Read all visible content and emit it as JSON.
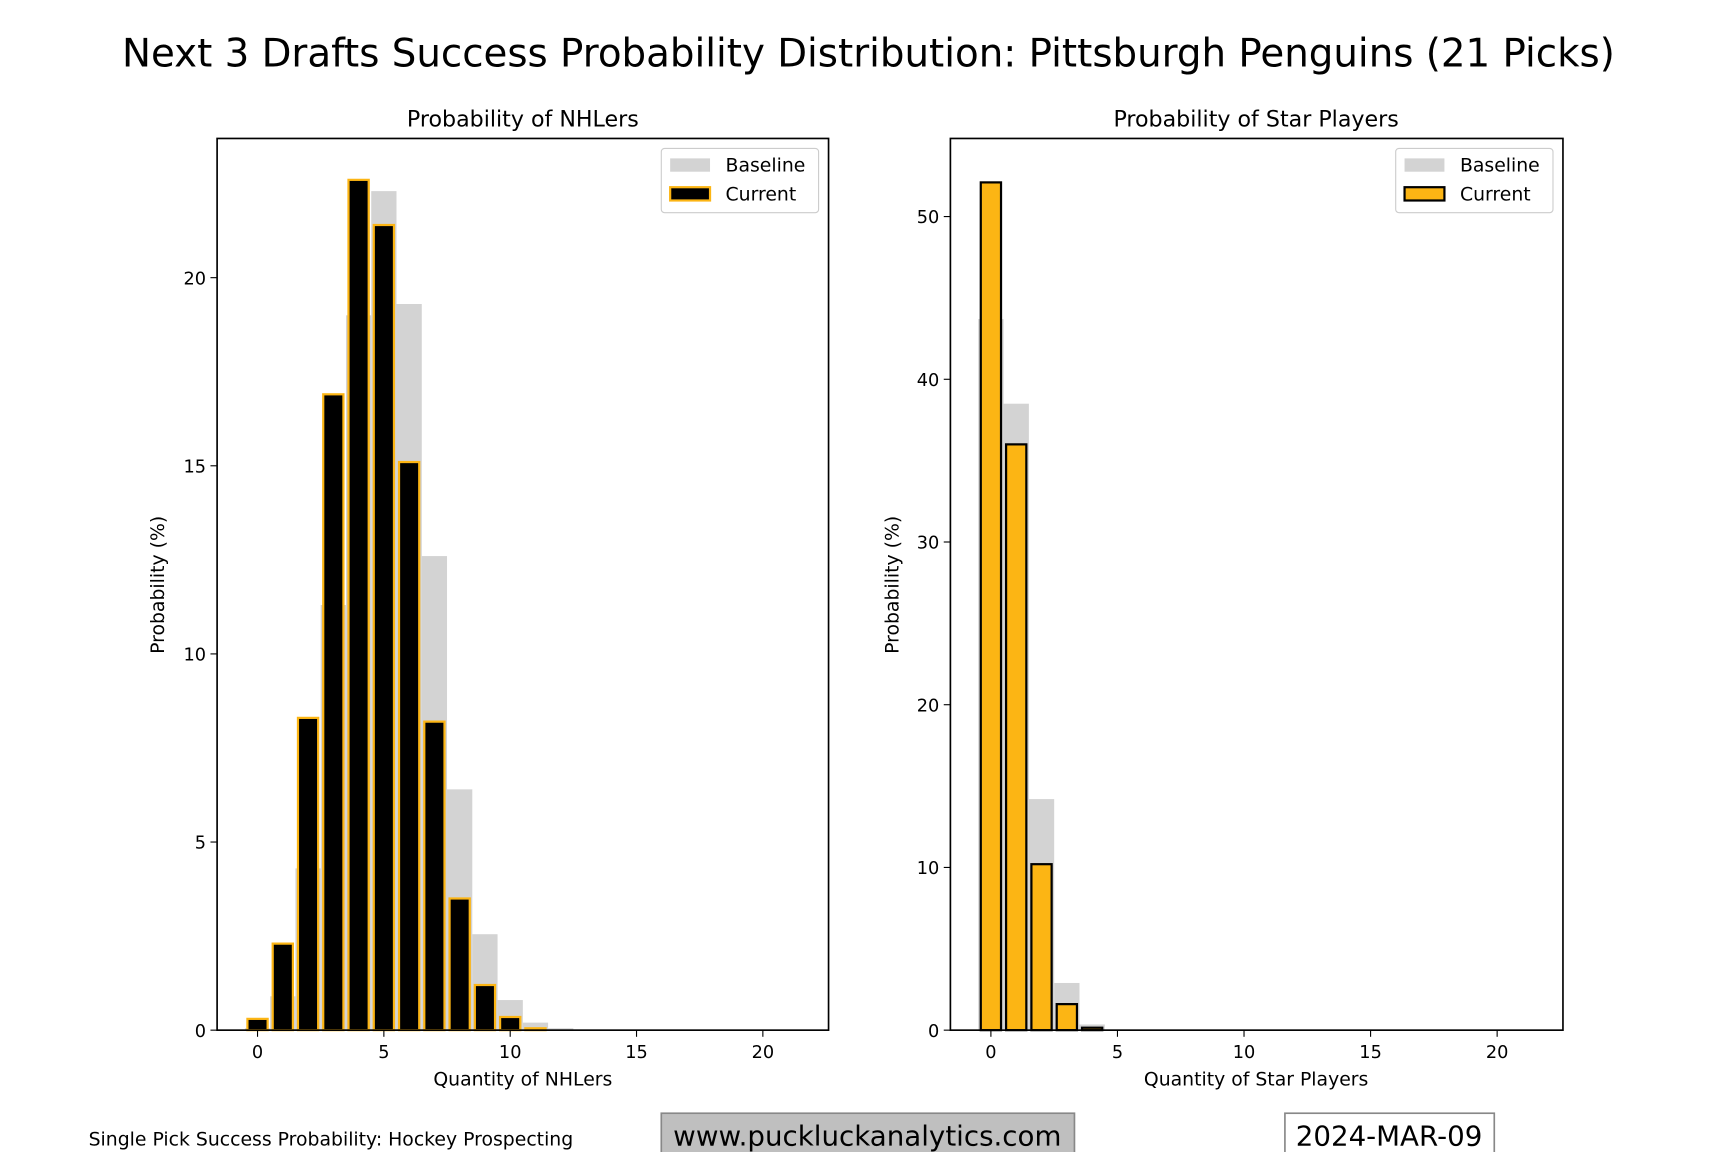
{
  "title": "Next 3 Drafts Success Probability Distribution: Pittsburgh Penguins (21 Picks)",
  "footer": {
    "source": "Single Pick Success Probability: Hockey Prospecting",
    "website": "www.puckluckanalytics.com",
    "date": "2024-MAR-09"
  },
  "colors": {
    "baseline": "#d3d3d3",
    "gold": "#fcb514",
    "black": "#000000"
  },
  "chart_data": [
    {
      "type": "bar",
      "title": "Probability of NHLers",
      "xlabel": "Quantity of NHLers",
      "ylabel": "Probability (%)",
      "xlim": [
        -1.6,
        22.6
      ],
      "ylim": [
        0,
        23.7
      ],
      "xticks": [
        0,
        5,
        10,
        15,
        20
      ],
      "yticks": [
        0,
        5,
        10,
        15,
        20
      ],
      "legend": {
        "position": "top-right",
        "entries": [
          "Baseline",
          "Current"
        ]
      },
      "x": [
        0,
        1,
        2,
        3,
        4,
        5,
        6,
        7,
        8,
        9,
        10,
        11,
        12,
        13,
        14,
        15,
        16,
        17,
        18,
        19,
        20,
        21
      ],
      "series": [
        {
          "name": "Baseline",
          "values": [
            0.05,
            0.9,
            4.3,
            11.3,
            19.0,
            22.3,
            19.3,
            12.6,
            6.4,
            2.55,
            0.8,
            0.2,
            0.05,
            0,
            0,
            0,
            0,
            0,
            0,
            0,
            0,
            0
          ]
        },
        {
          "name": "Current",
          "values": [
            0.3,
            2.3,
            8.3,
            16.9,
            22.6,
            21.4,
            15.1,
            8.2,
            3.5,
            1.2,
            0.35,
            0.05,
            0,
            0,
            0,
            0,
            0,
            0,
            0,
            0,
            0,
            0
          ]
        }
      ]
    },
    {
      "type": "bar",
      "title": "Probability of Star Players",
      "xlabel": "Quantity of Star Players",
      "ylabel": "Probability (%)",
      "xlim": [
        -1.6,
        22.6
      ],
      "ylim": [
        0,
        54.8
      ],
      "xticks": [
        0,
        5,
        10,
        15,
        20
      ],
      "yticks": [
        0,
        10,
        20,
        30,
        40,
        50
      ],
      "legend": {
        "position": "top-right",
        "entries": [
          "Baseline",
          "Current"
        ]
      },
      "x": [
        0,
        1,
        2,
        3,
        4,
        5,
        6,
        7,
        8,
        9,
        10,
        11,
        12,
        13,
        14,
        15,
        16,
        17,
        18,
        19,
        20,
        21
      ],
      "series": [
        {
          "name": "Baseline",
          "values": [
            43.7,
            38.5,
            14.2,
            2.9,
            0.35,
            0.05,
            0,
            0,
            0,
            0,
            0,
            0,
            0,
            0,
            0,
            0,
            0,
            0,
            0,
            0,
            0,
            0
          ]
        },
        {
          "name": "Current",
          "values": [
            52.1,
            36.0,
            10.2,
            1.6,
            0.15,
            0,
            0,
            0,
            0,
            0,
            0,
            0,
            0,
            0,
            0,
            0,
            0,
            0,
            0,
            0,
            0,
            0
          ]
        }
      ]
    }
  ]
}
